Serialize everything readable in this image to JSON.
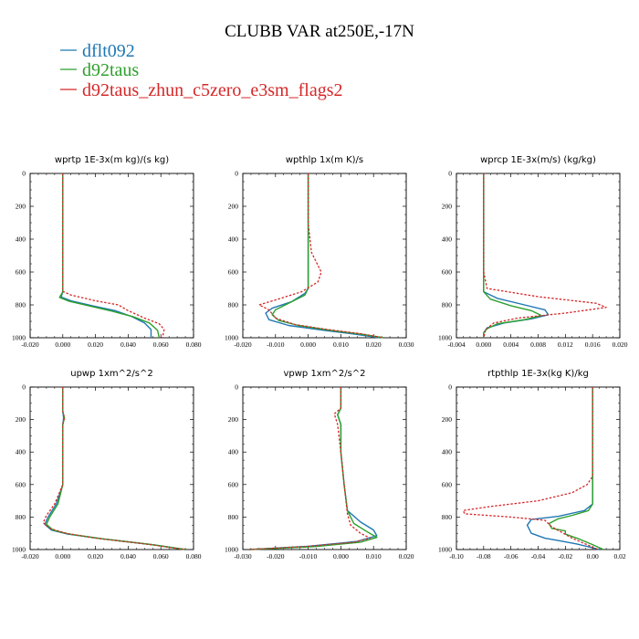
{
  "figure": {
    "title": "CLUBB VAR at250E,-17N"
  },
  "legend": [
    {
      "name": "dflt092",
      "color": "#1f77b4"
    },
    {
      "name": "d92taus",
      "color": "#2ca02c"
    },
    {
      "name": "d92taus_zhun_c5zero_e3sm_flags2",
      "color": "#d62728"
    }
  ],
  "chart_data": [
    {
      "type": "line",
      "title": "wprtp 1E-3x(m kg)/(s kg)",
      "xlim": [
        -0.02,
        0.08
      ],
      "ylim": [
        1000,
        0
      ],
      "xticks": [
        "-0.020",
        "0.000",
        "0.020",
        "0.040",
        "0.060",
        "0.080"
      ],
      "yticks": [
        "0",
        "200",
        "400",
        "600",
        "800",
        "1000"
      ],
      "series": [
        {
          "name": "dflt092",
          "x": [
            0,
            0,
            0,
            0,
            -0.001,
            0.005,
            0.018,
            0.032,
            0.042,
            0.05,
            0.054,
            0.054
          ],
          "y": [
            0,
            300,
            600,
            720,
            752,
            775,
            805,
            835,
            870,
            910,
            950,
            1000
          ]
        },
        {
          "name": "d92taus",
          "x": [
            0,
            0,
            0,
            0,
            -0.002,
            0.004,
            0.017,
            0.03,
            0.043,
            0.053,
            0.058,
            0.059
          ],
          "y": [
            0,
            300,
            600,
            720,
            755,
            778,
            808,
            838,
            872,
            910,
            955,
            1000
          ]
        },
        {
          "name": "d92taus_zhun_c5zero_e3sm_flags2",
          "x": [
            0,
            0,
            0,
            0,
            0.005,
            0.02,
            0.034,
            0.04,
            0.05,
            0.059,
            0.062,
            0.061
          ],
          "y": [
            0,
            300,
            600,
            718,
            740,
            775,
            800,
            835,
            880,
            915,
            950,
            1000
          ]
        }
      ]
    },
    {
      "type": "line",
      "title": "wpthlp 1x(m K)/s",
      "xlim": [
        -0.02,
        0.03
      ],
      "ylim": [
        1000,
        0
      ],
      "xticks": [
        "-0.020",
        "-0.010",
        "0.000",
        "0.010",
        "0.020",
        "0.030"
      ],
      "yticks": [
        "0",
        "200",
        "400",
        "600",
        "800",
        "1000"
      ],
      "series": [
        {
          "name": "dflt092",
          "x": [
            0,
            0,
            0,
            0,
            -0.001,
            -0.005,
            -0.011,
            -0.013,
            -0.012,
            -0.006,
            0.005,
            0.015,
            0.022
          ],
          "y": [
            0,
            300,
            600,
            700,
            730,
            780,
            820,
            850,
            890,
            925,
            955,
            980,
            1000
          ]
        },
        {
          "name": "d92taus",
          "x": [
            0,
            0,
            0,
            0,
            -0.001,
            -0.006,
            -0.01,
            -0.011,
            -0.009,
            -0.003,
            0.007,
            0.017,
            0.023
          ],
          "y": [
            0,
            300,
            600,
            700,
            740,
            790,
            830,
            860,
            895,
            925,
            955,
            980,
            1000
          ]
        },
        {
          "name": "d92taus_zhun_c5zero_e3sm_flags2",
          "x": [
            0,
            0,
            0.001,
            0.004,
            0.003,
            -0.002,
            -0.01,
            -0.015,
            -0.012,
            -0.01,
            -0.004,
            0.006,
            0.016,
            0.023
          ],
          "y": [
            0,
            300,
            480,
            600,
            660,
            720,
            770,
            800,
            830,
            880,
            920,
            950,
            975,
            1000
          ]
        }
      ]
    },
    {
      "type": "line",
      "title": "wprcp 1E-3x(m/s) (kg/kg)",
      "xlim": [
        -0.004,
        0.02
      ],
      "ylim": [
        1000,
        0
      ],
      "xticks": [
        "-0.004",
        "0.000",
        "0.004",
        "0.008",
        "0.012",
        "0.016",
        "0.020"
      ],
      "yticks": [
        "0",
        "200",
        "400",
        "600",
        "800",
        "1000"
      ],
      "series": [
        {
          "name": "dflt092",
          "x": [
            0,
            0,
            0,
            0,
            0.002,
            0.006,
            0.009,
            0.0095,
            0.007,
            0.003,
            0.0005,
            0,
            0
          ],
          "y": [
            0,
            300,
            600,
            720,
            760,
            800,
            830,
            860,
            885,
            910,
            940,
            970,
            1000
          ]
        },
        {
          "name": "d92taus",
          "x": [
            0,
            0,
            0,
            0,
            0.001,
            0.004,
            0.007,
            0.0085,
            0.006,
            0.002,
            0.0005,
            0,
            0
          ],
          "y": [
            0,
            300,
            600,
            720,
            765,
            805,
            835,
            865,
            890,
            915,
            945,
            970,
            1000
          ]
        },
        {
          "name": "d92taus_zhun_c5zero_e3sm_flags2",
          "x": [
            0,
            0,
            0,
            0.0005,
            0.008,
            0.0165,
            0.018,
            0.012,
            0.005,
            0.0015,
            0.0003,
            0
          ],
          "y": [
            0,
            300,
            600,
            700,
            750,
            790,
            815,
            850,
            880,
            910,
            950,
            1000
          ]
        }
      ]
    },
    {
      "type": "line",
      "title": "upwp 1xm^2/s^2",
      "xlim": [
        -0.02,
        0.08
      ],
      "ylim": [
        1000,
        0
      ],
      "xticks": [
        "-0.020",
        "0.000",
        "0.020",
        "0.040",
        "0.060",
        "0.080"
      ],
      "yticks": [
        "0",
        "200",
        "400",
        "600",
        "800",
        "1000"
      ],
      "series": [
        {
          "name": "dflt092",
          "x": [
            0,
            0,
            0.0005,
            0,
            0,
            0,
            -0.004,
            -0.009,
            -0.011,
            -0.007,
            0.003,
            0.025,
            0.055,
            0.075
          ],
          "y": [
            0,
            150,
            190,
            230,
            400,
            600,
            720,
            800,
            845,
            880,
            905,
            935,
            970,
            1000
          ]
        },
        {
          "name": "d92taus",
          "x": [
            0,
            0,
            0.001,
            0,
            0,
            0,
            -0.003,
            -0.008,
            -0.01,
            -0.006,
            0.004,
            0.025,
            0.055,
            0.075
          ],
          "y": [
            0,
            150,
            190,
            230,
            400,
            600,
            720,
            800,
            845,
            880,
            905,
            935,
            970,
            1000
          ]
        },
        {
          "name": "d92taus_zhun_c5zero_e3sm_flags2",
          "x": [
            0,
            0,
            0.001,
            0,
            0,
            0,
            -0.005,
            -0.01,
            -0.012,
            -0.008,
            0.002,
            0.02,
            0.05,
            0.075
          ],
          "y": [
            0,
            150,
            190,
            230,
            400,
            600,
            720,
            790,
            835,
            870,
            900,
            930,
            965,
            1000
          ]
        }
      ]
    },
    {
      "type": "line",
      "title": "vpwp 1xm^2/s^2",
      "xlim": [
        -0.03,
        0.02
      ],
      "ylim": [
        1000,
        0
      ],
      "xticks": [
        "-0.030",
        "-0.020",
        "-0.010",
        "0.000",
        "0.010",
        "0.020"
      ],
      "yticks": [
        "0",
        "200",
        "400",
        "600",
        "800",
        "1000"
      ],
      "series": [
        {
          "name": "dflt092",
          "x": [
            0,
            0,
            -0.001,
            0,
            0,
            0.001,
            0.002,
            0.006,
            0.01,
            0.011,
            0.005,
            -0.01,
            -0.028
          ],
          "y": [
            0,
            130,
            170,
            230,
            400,
            600,
            760,
            830,
            880,
            915,
            950,
            980,
            1000
          ]
        },
        {
          "name": "d92taus",
          "x": [
            0,
            0,
            -0.001,
            0,
            0,
            0.001,
            0.002,
            0.004,
            0.008,
            0.011,
            0.006,
            -0.008,
            -0.028
          ],
          "y": [
            0,
            130,
            170,
            230,
            400,
            600,
            760,
            840,
            890,
            925,
            955,
            982,
            1000
          ]
        },
        {
          "name": "d92taus_zhun_c5zero_e3sm_flags2",
          "x": [
            0,
            0,
            -0.002,
            -0.001,
            0,
            0.001,
            0.002,
            0.003,
            0.006,
            0.009,
            0.004,
            -0.01,
            -0.028
          ],
          "y": [
            0,
            130,
            165,
            230,
            400,
            600,
            780,
            850,
            900,
            930,
            955,
            980,
            1000
          ]
        }
      ]
    },
    {
      "type": "line",
      "title": "rtpthlp 1E-3x(kg K)/kg",
      "xlim": [
        -0.1,
        0.02
      ],
      "ylim": [
        1000,
        0
      ],
      "xticks": [
        "-0.10",
        "-0.08",
        "-0.06",
        "-0.04",
        "-0.02",
        "0.00",
        "0.02"
      ],
      "yticks": [
        "0",
        "200",
        "400",
        "600",
        "800",
        "1000"
      ],
      "series": [
        {
          "name": "dflt092",
          "x": [
            0,
            0,
            0,
            0,
            -0.006,
            -0.025,
            -0.045,
            -0.048,
            -0.045,
            -0.035,
            -0.025,
            -0.012,
            -0.002,
            0.005
          ],
          "y": [
            0,
            300,
            600,
            720,
            760,
            795,
            815,
            850,
            900,
            930,
            945,
            965,
            985,
            1000
          ]
        },
        {
          "name": "d92taus",
          "x": [
            0,
            0,
            0,
            0,
            -0.003,
            -0.015,
            -0.025,
            -0.032,
            -0.03,
            -0.02,
            -0.02,
            -0.01,
            0,
            0.008
          ],
          "y": [
            0,
            300,
            600,
            720,
            760,
            790,
            810,
            840,
            870,
            885,
            905,
            935,
            970,
            1000
          ]
        },
        {
          "name": "d92taus_zhun_c5zero_e3sm_flags2",
          "x": [
            0,
            0,
            0,
            -0.004,
            -0.015,
            -0.04,
            -0.075,
            -0.095,
            -0.094,
            -0.06,
            -0.035,
            -0.03,
            -0.015,
            0.004
          ],
          "y": [
            0,
            300,
            550,
            600,
            650,
            700,
            735,
            760,
            780,
            800,
            820,
            860,
            930,
            1000
          ]
        }
      ]
    }
  ]
}
